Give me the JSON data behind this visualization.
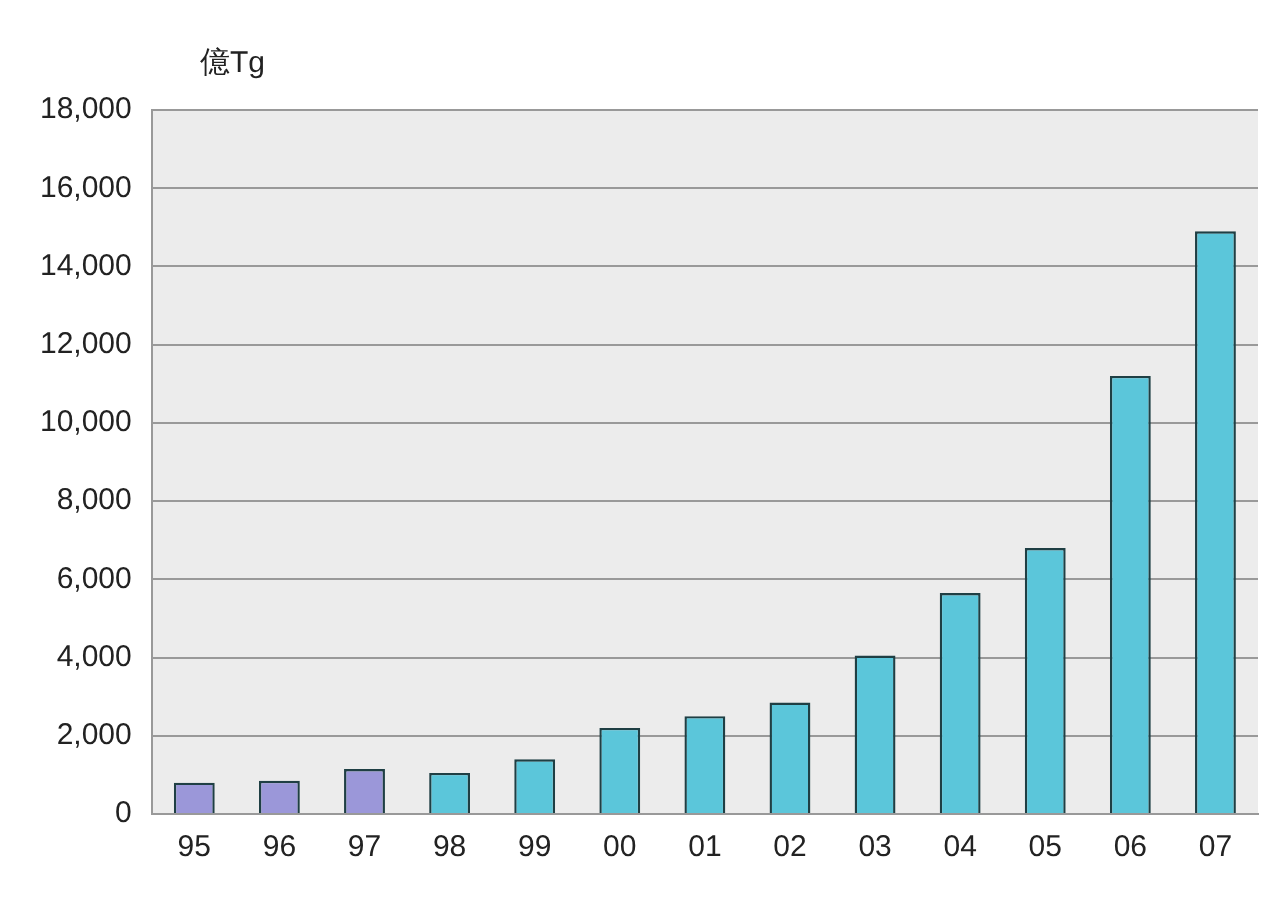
{
  "chart_data": {
    "type": "bar",
    "ylabel": "億Tg",
    "categories": [
      "95",
      "96",
      "97",
      "98",
      "99",
      "00",
      "01",
      "02",
      "03",
      "04",
      "05",
      "06",
      "07"
    ],
    "values": [
      800,
      850,
      1150,
      1050,
      1400,
      2200,
      2500,
      2850,
      4050,
      5650,
      6800,
      11200,
      14900
    ],
    "colors": [
      "#9b97d9",
      "#9b97d9",
      "#9b97d9",
      "#5bc6da",
      "#5bc6da",
      "#5bc6da",
      "#5bc6da",
      "#5bc6da",
      "#5bc6da",
      "#5bc6da",
      "#5bc6da",
      "#5bc6da",
      "#5bc6da"
    ],
    "ylim": [
      0,
      18000
    ],
    "yticks": [
      {
        "value": 0,
        "label": "0"
      },
      {
        "value": 2000,
        "label": "2,000"
      },
      {
        "value": 4000,
        "label": "4,000"
      },
      {
        "value": 6000,
        "label": "6,000"
      },
      {
        "value": 8000,
        "label": "8,000"
      },
      {
        "value": 10000,
        "label": "10,000"
      },
      {
        "value": 12000,
        "label": "12,000"
      },
      {
        "value": 14000,
        "label": "14,000"
      },
      {
        "value": 16000,
        "label": "16,000"
      },
      {
        "value": 18000,
        "label": "18,000"
      }
    ],
    "grid": "y"
  }
}
